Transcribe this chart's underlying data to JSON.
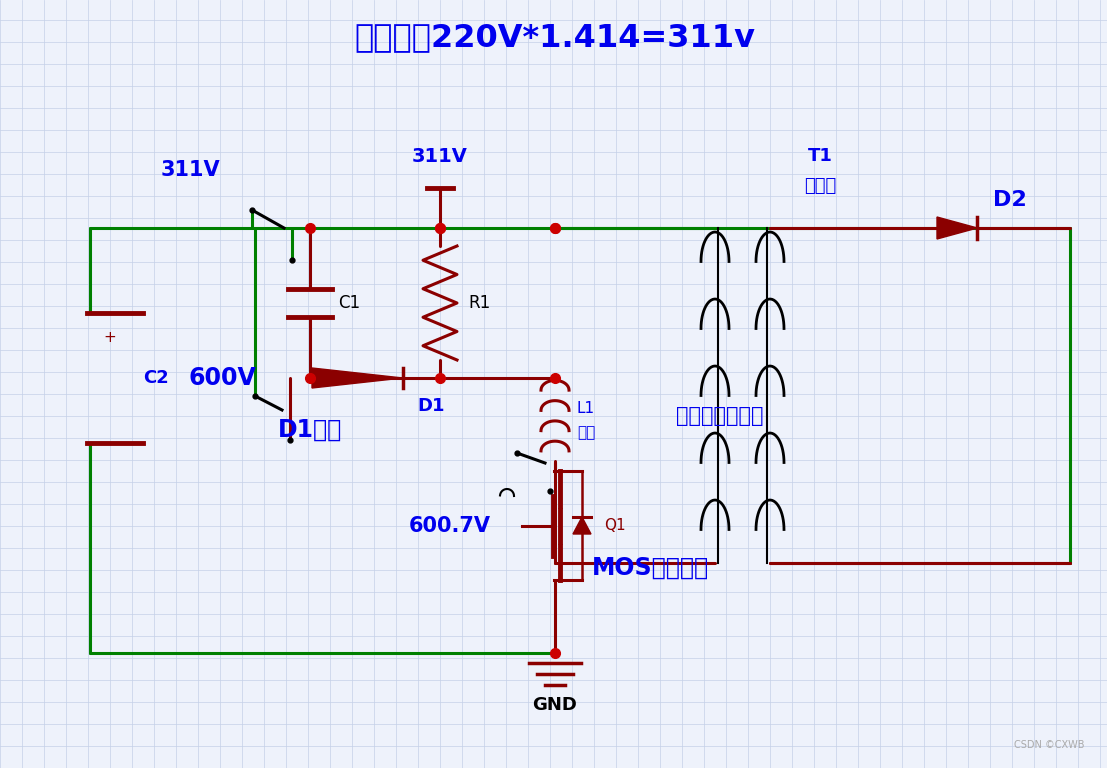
{
  "bg_color": "#eef2fb",
  "grid_color": "#c5d0e8",
  "green": "#008000",
  "dark": "#8b0000",
  "dot": "#cc0000",
  "blue": "#0000ee",
  "black": "#000000",
  "title": "整流之后220V*1.414=311v",
  "lbl_311V_a": "311V",
  "lbl_311V_b": "311V",
  "lbl_600V": "600V",
  "lbl_6007V": "600.7V",
  "lbl_C1": "C1",
  "lbl_C2": "C2",
  "lbl_R1": "R1",
  "lbl_D1": "D1",
  "lbl_D1on": "D1导通",
  "lbl_L1": "L1",
  "lbl_leakage": "漏感",
  "lbl_T1": "T1",
  "lbl_xfmr": "变压器",
  "lbl_D2": "D2",
  "lbl_Q1": "Q1",
  "lbl_MOS": "MOS关闭过程",
  "lbl_leakage_done": "漏感能量释放完",
  "lbl_GND": "GND",
  "lbl_csdn": "CSDN ©CXWB"
}
